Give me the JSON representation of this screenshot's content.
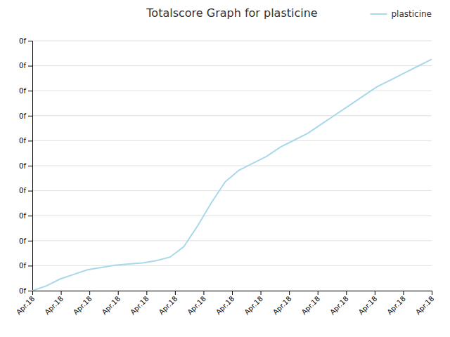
{
  "chart_data": {
    "type": "line",
    "title": "Totalscore Graph for plasticine",
    "x": [
      0,
      1,
      2,
      3,
      4,
      5,
      6,
      7,
      8,
      9,
      10,
      11,
      12,
      13,
      14,
      15,
      16,
      17,
      18,
      19,
      20,
      21,
      22,
      23,
      24,
      25,
      26,
      27,
      28,
      29
    ],
    "series": [
      {
        "name": "plasticine",
        "color": "#a8d8ea",
        "values": [
          0,
          0.02,
          0.05,
          0.07,
          0.09,
          0.1,
          0.11,
          0.115,
          0.12,
          0.13,
          0.145,
          0.19,
          0.28,
          0.38,
          0.47,
          0.52,
          0.55,
          0.58,
          0.62,
          0.65,
          0.68,
          0.72,
          0.76,
          0.8,
          0.84,
          0.88,
          0.91,
          0.94,
          0.97,
          1.0
        ]
      }
    ],
    "xlim": [
      0,
      29
    ],
    "xticks": [
      {
        "value": 0,
        "label": "Apr.18"
      },
      {
        "value": 2.0714285714285716,
        "label": "Apr.18"
      },
      {
        "value": 4.142857142857143,
        "label": "Apr.18"
      },
      {
        "value": 6.214285714285714,
        "label": "Apr.18"
      },
      {
        "value": 8.285714285714286,
        "label": "Apr.18"
      },
      {
        "value": 10.357142857142858,
        "label": "Apr.18"
      },
      {
        "value": 12.428571428571429,
        "label": "Apr.18"
      },
      {
        "value": 14.5,
        "label": "Apr.18"
      },
      {
        "value": 16.571428571428573,
        "label": "Apr.18"
      },
      {
        "value": 18.642857142857142,
        "label": "Apr.18"
      },
      {
        "value": 20.714285714285715,
        "label": "Apr.18"
      },
      {
        "value": 22.785714285714285,
        "label": "Apr.18"
      },
      {
        "value": 24.857142857142858,
        "label": "Apr.18"
      },
      {
        "value": 26.928571428571427,
        "label": "Apr.18"
      },
      {
        "value": 29,
        "label": "Apr.18"
      }
    ],
    "ylim": [
      0,
      1.08
    ],
    "yticks": [
      {
        "value": 0,
        "label": "0f"
      },
      {
        "value": 0.108,
        "label": "0f"
      },
      {
        "value": 0.216,
        "label": "0f"
      },
      {
        "value": 0.324,
        "label": "0f"
      },
      {
        "value": 0.432,
        "label": "0f"
      },
      {
        "value": 0.54,
        "label": "0f"
      },
      {
        "value": 0.648,
        "label": "0f"
      },
      {
        "value": 0.756,
        "label": "0f"
      },
      {
        "value": 0.864,
        "label": "0f"
      },
      {
        "value": 0.972,
        "label": "0f"
      },
      {
        "value": 1.08,
        "label": "0f"
      }
    ],
    "grid": true,
    "legend": "top-right"
  }
}
